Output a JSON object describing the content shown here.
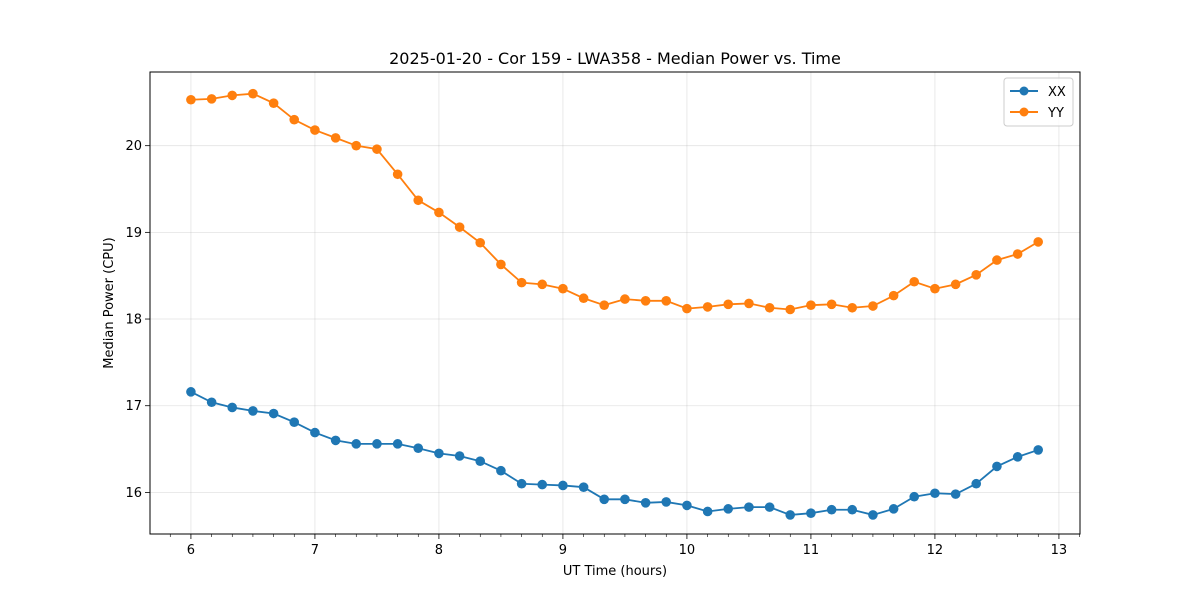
{
  "chart_data": {
    "type": "line",
    "title": "2025-01-20 - Cor 159 - LWA358 - Median Power vs. Time",
    "xlabel": "UT Time (hours)",
    "ylabel": "Median Power (CPU)",
    "xlim": [
      5.67,
      13.17
    ],
    "ylim": [
      15.52,
      20.85
    ],
    "xticks": [
      6,
      7,
      8,
      9,
      10,
      11,
      12,
      13
    ],
    "yticks": [
      16,
      17,
      18,
      19,
      20
    ],
    "grid": true,
    "legend_position": "top-right",
    "x": [
      6.0,
      6.167,
      6.333,
      6.5,
      6.667,
      6.833,
      7.0,
      7.167,
      7.333,
      7.5,
      7.667,
      7.833,
      8.0,
      8.167,
      8.333,
      8.5,
      8.667,
      8.833,
      9.0,
      9.167,
      9.333,
      9.5,
      9.667,
      9.833,
      10.0,
      10.167,
      10.333,
      10.5,
      10.667,
      10.833,
      11.0,
      11.167,
      11.333,
      11.5,
      11.667,
      11.833,
      12.0,
      12.167,
      12.333,
      12.5,
      12.667,
      12.833
    ],
    "series": [
      {
        "name": "XX",
        "color": "#1f77b4",
        "values": [
          17.16,
          17.04,
          16.98,
          16.94,
          16.91,
          16.81,
          16.69,
          16.6,
          16.56,
          16.56,
          16.56,
          16.51,
          16.45,
          16.42,
          16.36,
          16.25,
          16.1,
          16.09,
          16.08,
          16.06,
          15.92,
          15.92,
          15.88,
          15.89,
          15.85,
          15.78,
          15.81,
          15.83,
          15.83,
          15.74,
          15.76,
          15.8,
          15.8,
          15.74,
          15.81,
          15.95,
          15.99,
          15.98,
          16.1,
          16.3,
          16.41,
          16.49
        ]
      },
      {
        "name": "YY",
        "color": "#ff7f0e",
        "values": [
          20.53,
          20.54,
          20.58,
          20.6,
          20.49,
          20.3,
          20.18,
          20.09,
          20.0,
          19.96,
          19.67,
          19.37,
          19.23,
          19.06,
          18.88,
          18.63,
          18.42,
          18.4,
          18.35,
          18.24,
          18.16,
          18.23,
          18.21,
          18.21,
          18.12,
          18.14,
          18.17,
          18.18,
          18.13,
          18.11,
          18.16,
          18.17,
          18.13,
          18.15,
          18.27,
          18.43,
          18.35,
          18.4,
          18.51,
          18.68,
          18.75,
          18.89
        ]
      }
    ]
  }
}
